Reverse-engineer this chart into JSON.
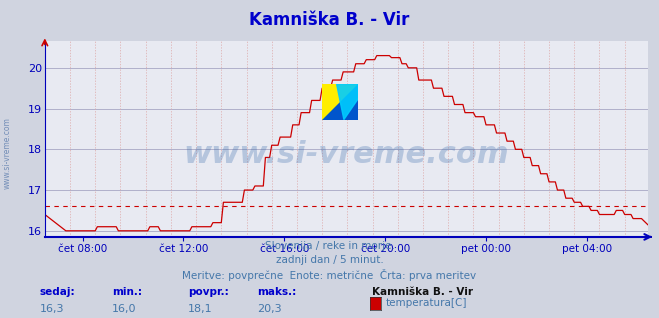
{
  "title": "Kamniška B. - Vir",
  "title_color": "#0000cc",
  "title_fontsize": 12,
  "bg_color": "#d0d4e0",
  "plot_bg_color": "#e8eaf2",
  "grid_color_h": "#9999bb",
  "grid_color_v": "#ddaaaa",
  "line_color": "#cc0000",
  "avg_line_color": "#cc0000",
  "axis_color": "#0000bb",
  "tick_color": "#0000bb",
  "bottom_text1": "Slovenija / reke in morje.",
  "bottom_text2": "zadnji dan / 5 minut.",
  "bottom_text3": "Meritve: povprečne  Enote: metrične  Črta: prva meritev",
  "bottom_text_color": "#4477aa",
  "watermark": "www.si-vreme.com",
  "watermark_color": "#3366aa",
  "side_text": "www.si-vreme.com",
  "legend_title": "Kamniška B. - Vir",
  "legend_label": "temperatura[C]",
  "legend_color": "#cc0000",
  "stat_labels": [
    "sedaj:",
    "min.:",
    "povpr.:",
    "maks.:"
  ],
  "stat_label_color": "#0000cc",
  "stat_values": [
    "16,3",
    "16,0",
    "18,1",
    "20,3"
  ],
  "stat_value_color": "#4477aa",
  "ylim_min": 15.85,
  "ylim_max": 20.65,
  "yticks": [
    16,
    17,
    18,
    19,
    20
  ],
  "avg_value": 16.6,
  "x_tick_labels": [
    "čet 08:00",
    "čet 12:00",
    "čet 16:00",
    "čet 20:00",
    "pet 00:00",
    "pet 04:00"
  ],
  "n_points": 288
}
